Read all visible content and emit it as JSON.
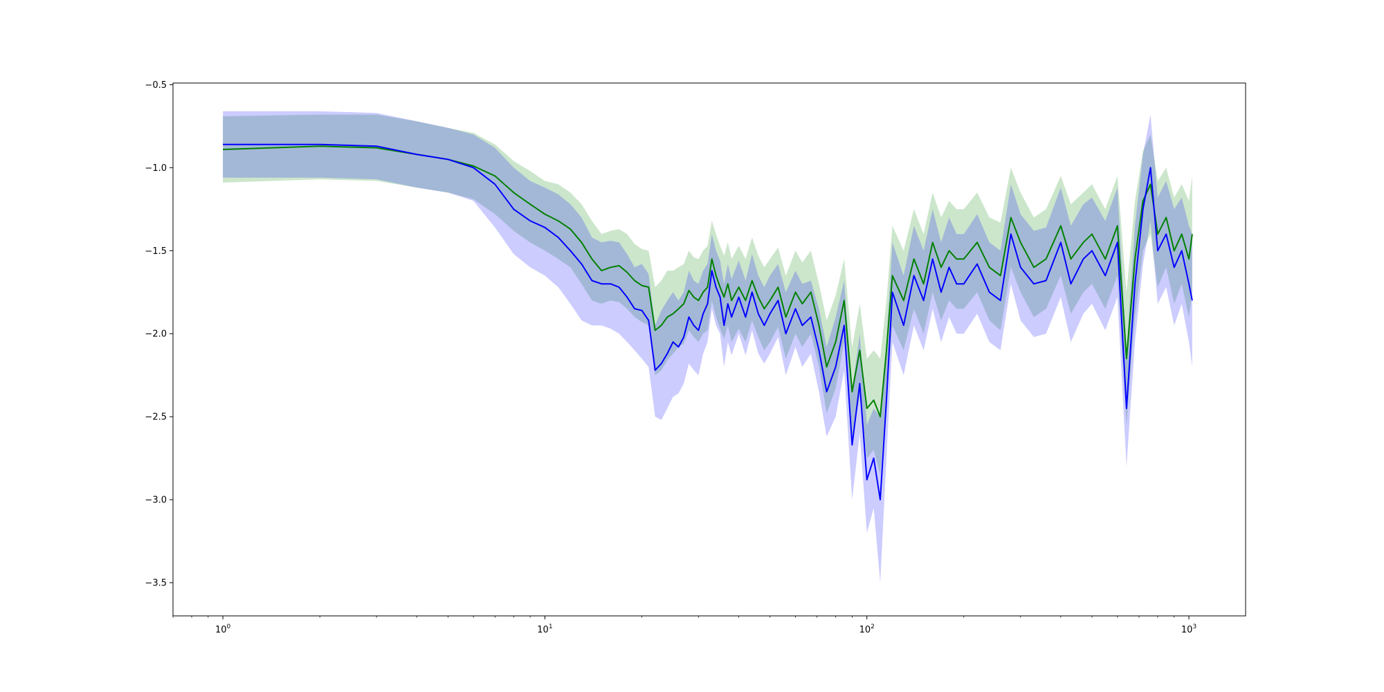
{
  "chart_data": {
    "type": "line",
    "title": "",
    "xlabel": "",
    "ylabel": "",
    "xscale": "log",
    "xlim": [
      0.7,
      1500
    ],
    "ylim": [
      -3.7,
      -0.49
    ],
    "grid": false,
    "legend": "none",
    "x_ticks": [
      {
        "value": 1,
        "base": "10",
        "exp": "0"
      },
      {
        "value": 10,
        "base": "10",
        "exp": "1"
      },
      {
        "value": 100,
        "base": "10",
        "exp": "2"
      },
      {
        "value": 1000,
        "base": "10",
        "exp": "3"
      }
    ],
    "y_ticks": [
      {
        "value": -0.5,
        "label": "−0.5"
      },
      {
        "value": -1.0,
        "label": "−1.0"
      },
      {
        "value": -1.5,
        "label": "−1.5"
      },
      {
        "value": -2.0,
        "label": "−2.0"
      },
      {
        "value": -2.5,
        "label": "−2.5"
      },
      {
        "value": -3.0,
        "label": "−3.0"
      },
      {
        "value": -3.5,
        "label": "−3.5"
      }
    ],
    "series": [
      {
        "color": "#008000",
        "band_color": "#008000",
        "band_opacity": 0.2,
        "x": [
          1,
          2,
          3,
          4,
          5,
          6,
          7,
          8,
          9,
          10,
          11,
          12,
          13,
          14,
          15,
          16,
          17,
          18,
          19,
          20,
          21,
          22,
          23,
          24,
          25,
          26,
          27,
          28,
          29,
          30,
          31,
          32,
          33,
          34,
          35,
          36,
          37,
          38,
          40,
          42,
          44,
          46,
          48,
          50,
          53,
          56,
          60,
          63,
          67,
          71,
          75,
          80,
          85,
          90,
          95,
          100,
          105,
          110,
          115,
          120,
          130,
          140,
          150,
          160,
          170,
          180,
          190,
          200,
          220,
          240,
          260,
          280,
          300,
          330,
          360,
          400,
          430,
          470,
          500,
          550,
          600,
          640,
          680,
          720,
          760,
          800,
          850,
          900,
          950,
          1000,
          1024
        ],
        "y": [
          -0.89,
          -0.87,
          -0.88,
          -0.92,
          -0.95,
          -0.99,
          -1.05,
          -1.15,
          -1.22,
          -1.28,
          -1.32,
          -1.37,
          -1.45,
          -1.55,
          -1.62,
          -1.6,
          -1.59,
          -1.63,
          -1.68,
          -1.71,
          -1.72,
          -1.98,
          -1.95,
          -1.9,
          -1.88,
          -1.85,
          -1.82,
          -1.74,
          -1.78,
          -1.8,
          -1.75,
          -1.72,
          -1.55,
          -1.65,
          -1.72,
          -1.78,
          -1.7,
          -1.8,
          -1.72,
          -1.8,
          -1.68,
          -1.78,
          -1.85,
          -1.8,
          -1.72,
          -1.9,
          -1.75,
          -1.82,
          -1.75,
          -1.95,
          -2.2,
          -2.05,
          -1.8,
          -2.35,
          -2.1,
          -2.45,
          -2.4,
          -2.5,
          -2.1,
          -1.65,
          -1.8,
          -1.55,
          -1.7,
          -1.45,
          -1.6,
          -1.5,
          -1.55,
          -1.55,
          -1.45,
          -1.6,
          -1.65,
          -1.3,
          -1.45,
          -1.6,
          -1.55,
          -1.35,
          -1.55,
          -1.45,
          -1.4,
          -1.55,
          -1.35,
          -2.15,
          -1.55,
          -1.2,
          -1.1,
          -1.4,
          -1.3,
          -1.5,
          -1.4,
          -1.55,
          -1.4
        ],
        "lower": [
          -1.09,
          -1.07,
          -1.08,
          -1.12,
          -1.15,
          -1.19,
          -1.28,
          -1.38,
          -1.45,
          -1.5,
          -1.55,
          -1.6,
          -1.7,
          -1.8,
          -1.82,
          -1.8,
          -1.81,
          -1.85,
          -1.9,
          -1.93,
          -1.95,
          -2.25,
          -2.22,
          -2.16,
          -2.12,
          -2.08,
          -2.06,
          -1.98,
          -2.02,
          -2.05,
          -2.0,
          -1.98,
          -1.8,
          -1.9,
          -1.97,
          -2.03,
          -1.95,
          -2.05,
          -1.97,
          -2.05,
          -1.92,
          -2.02,
          -2.1,
          -2.05,
          -1.96,
          -2.15,
          -2.0,
          -2.08,
          -2.0,
          -2.2,
          -2.48,
          -2.33,
          -2.05,
          -2.62,
          -2.38,
          -2.75,
          -2.7,
          -2.85,
          -2.4,
          -1.95,
          -2.1,
          -1.85,
          -2.0,
          -1.75,
          -1.92,
          -1.8,
          -1.85,
          -1.85,
          -1.75,
          -1.92,
          -1.98,
          -1.6,
          -1.75,
          -1.9,
          -1.85,
          -1.65,
          -1.88,
          -1.75,
          -1.7,
          -1.85,
          -1.65,
          -2.55,
          -1.9,
          -1.5,
          -1.4,
          -1.72,
          -1.6,
          -1.82,
          -1.7,
          -1.9,
          -1.75
        ],
        "upper": [
          -0.69,
          -0.68,
          -0.68,
          -0.72,
          -0.76,
          -0.79,
          -0.86,
          -0.96,
          -1.02,
          -1.08,
          -1.1,
          -1.15,
          -1.22,
          -1.32,
          -1.4,
          -1.38,
          -1.37,
          -1.4,
          -1.46,
          -1.49,
          -1.5,
          -1.72,
          -1.68,
          -1.62,
          -1.62,
          -1.6,
          -1.58,
          -1.5,
          -1.54,
          -1.55,
          -1.5,
          -1.47,
          -1.32,
          -1.4,
          -1.47,
          -1.53,
          -1.45,
          -1.55,
          -1.47,
          -1.55,
          -1.42,
          -1.53,
          -1.6,
          -1.55,
          -1.48,
          -1.65,
          -1.5,
          -1.57,
          -1.5,
          -1.7,
          -1.92,
          -1.77,
          -1.55,
          -2.08,
          -1.82,
          -2.15,
          -2.1,
          -2.15,
          -1.8,
          -1.35,
          -1.5,
          -1.25,
          -1.4,
          -1.15,
          -1.3,
          -1.2,
          -1.25,
          -1.25,
          -1.15,
          -1.3,
          -1.33,
          -1.0,
          -1.15,
          -1.3,
          -1.25,
          -1.05,
          -1.22,
          -1.15,
          -1.1,
          -1.25,
          -1.05,
          -1.75,
          -1.2,
          -0.9,
          -0.8,
          -1.08,
          -1.0,
          -1.18,
          -1.1,
          -1.2,
          -1.05
        ]
      },
      {
        "color": "#0000ff",
        "band_color": "#0000ff",
        "band_opacity": 0.2,
        "x": [
          1,
          2,
          3,
          4,
          5,
          6,
          7,
          8,
          9,
          10,
          11,
          12,
          13,
          14,
          15,
          16,
          17,
          18,
          19,
          20,
          21,
          22,
          23,
          24,
          25,
          26,
          27,
          28,
          29,
          30,
          31,
          32,
          33,
          34,
          35,
          36,
          37,
          38,
          40,
          42,
          44,
          46,
          48,
          50,
          53,
          56,
          60,
          63,
          67,
          71,
          75,
          80,
          85,
          90,
          95,
          100,
          105,
          110,
          115,
          120,
          130,
          140,
          150,
          160,
          170,
          180,
          190,
          200,
          220,
          240,
          260,
          280,
          300,
          330,
          360,
          400,
          430,
          470,
          500,
          550,
          600,
          640,
          680,
          720,
          760,
          800,
          850,
          900,
          950,
          1000,
          1024
        ],
        "y": [
          -0.86,
          -0.86,
          -0.87,
          -0.92,
          -0.95,
          -1.0,
          -1.1,
          -1.25,
          -1.32,
          -1.36,
          -1.42,
          -1.5,
          -1.58,
          -1.68,
          -1.7,
          -1.7,
          -1.72,
          -1.78,
          -1.85,
          -1.86,
          -1.92,
          -2.22,
          -2.18,
          -2.12,
          -2.05,
          -2.08,
          -2.02,
          -1.9,
          -1.95,
          -1.98,
          -1.88,
          -1.82,
          -1.62,
          -1.72,
          -1.78,
          -1.95,
          -1.82,
          -1.9,
          -1.78,
          -1.9,
          -1.75,
          -1.88,
          -1.95,
          -1.88,
          -1.8,
          -2.0,
          -1.85,
          -1.95,
          -1.9,
          -2.1,
          -2.35,
          -2.2,
          -1.95,
          -2.67,
          -2.3,
          -2.88,
          -2.75,
          -3.0,
          -2.4,
          -1.75,
          -1.95,
          -1.65,
          -1.8,
          -1.55,
          -1.75,
          -1.6,
          -1.7,
          -1.7,
          -1.58,
          -1.75,
          -1.8,
          -1.4,
          -1.6,
          -1.7,
          -1.68,
          -1.45,
          -1.7,
          -1.55,
          -1.5,
          -1.65,
          -1.45,
          -2.45,
          -1.7,
          -1.25,
          -1.0,
          -1.5,
          -1.4,
          -1.6,
          -1.5,
          -1.7,
          -1.8
        ],
        "lower": [
          -1.06,
          -1.06,
          -1.07,
          -1.12,
          -1.15,
          -1.2,
          -1.36,
          -1.52,
          -1.6,
          -1.65,
          -1.72,
          -1.82,
          -1.92,
          -1.95,
          -1.95,
          -1.97,
          -2.0,
          -2.05,
          -2.1,
          -2.15,
          -2.2,
          -2.5,
          -2.52,
          -2.45,
          -2.38,
          -2.36,
          -2.3,
          -2.18,
          -2.22,
          -2.25,
          -2.12,
          -2.05,
          -1.85,
          -1.95,
          -2.0,
          -2.2,
          -2.05,
          -2.13,
          -2.0,
          -2.13,
          -1.98,
          -2.12,
          -2.18,
          -2.12,
          -2.02,
          -2.25,
          -2.08,
          -2.2,
          -2.12,
          -2.35,
          -2.62,
          -2.5,
          -2.22,
          -3.0,
          -2.6,
          -3.2,
          -3.05,
          -3.5,
          -2.75,
          -2.05,
          -2.25,
          -1.95,
          -2.1,
          -1.85,
          -2.05,
          -1.9,
          -2.0,
          -2.0,
          -1.88,
          -2.05,
          -2.1,
          -1.7,
          -1.92,
          -2.02,
          -2.0,
          -1.78,
          -2.05,
          -1.88,
          -1.82,
          -1.98,
          -1.78,
          -2.8,
          -2.05,
          -1.58,
          -1.32,
          -1.82,
          -1.72,
          -1.95,
          -1.82,
          -2.05,
          -2.2
        ],
        "upper": [
          -0.66,
          -0.66,
          -0.67,
          -0.72,
          -0.76,
          -0.8,
          -0.88,
          -1.0,
          -1.08,
          -1.12,
          -1.16,
          -1.22,
          -1.3,
          -1.42,
          -1.45,
          -1.44,
          -1.45,
          -1.52,
          -1.6,
          -1.58,
          -1.64,
          -1.95,
          -1.86,
          -1.8,
          -1.75,
          -1.8,
          -1.75,
          -1.62,
          -1.68,
          -1.7,
          -1.62,
          -1.58,
          -1.4,
          -1.5,
          -1.56,
          -1.7,
          -1.58,
          -1.67,
          -1.56,
          -1.68,
          -1.52,
          -1.65,
          -1.72,
          -1.65,
          -1.58,
          -1.75,
          -1.62,
          -1.7,
          -1.68,
          -1.85,
          -2.08,
          -1.9,
          -1.68,
          -2.34,
          -2.0,
          -2.55,
          -2.45,
          -2.5,
          -2.05,
          -1.45,
          -1.65,
          -1.35,
          -1.5,
          -1.25,
          -1.45,
          -1.3,
          -1.4,
          -1.4,
          -1.28,
          -1.45,
          -1.5,
          -1.1,
          -1.28,
          -1.38,
          -1.36,
          -1.12,
          -1.35,
          -1.22,
          -1.18,
          -1.32,
          -1.12,
          -2.1,
          -1.35,
          -0.92,
          -0.68,
          -1.18,
          -1.08,
          -1.25,
          -1.18,
          -1.35,
          -1.4
        ]
      }
    ]
  }
}
